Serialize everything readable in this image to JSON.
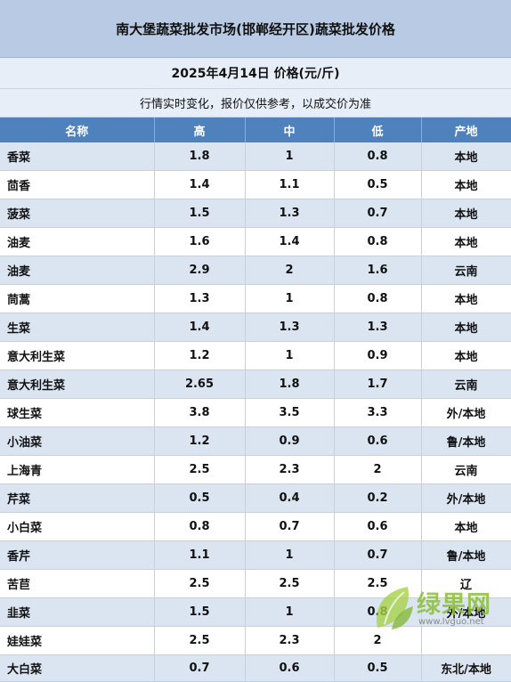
{
  "header": {
    "title": "南大堡蔬菜批发市场(邯郸经开区)蔬菜批发价格",
    "date_unit": "2025年4月14日  价格(元/斤)",
    "note": "行情实时变化，报价仅供参考，以成交价为准"
  },
  "table": {
    "columns": [
      "名称",
      "高",
      "中",
      "低",
      "产地"
    ],
    "rows": [
      {
        "name": "香菜",
        "high": "1.8",
        "mid": "1",
        "low": "0.8",
        "origin": "本地"
      },
      {
        "name": "茴香",
        "high": "1.4",
        "mid": "1.1",
        "low": "0.5",
        "origin": "本地"
      },
      {
        "name": "菠菜",
        "high": "1.5",
        "mid": "1.3",
        "low": "0.7",
        "origin": "本地"
      },
      {
        "name": "油麦",
        "high": "1.6",
        "mid": "1.4",
        "low": "0.8",
        "origin": "本地"
      },
      {
        "name": "油麦",
        "high": "2.9",
        "mid": "2",
        "low": "1.6",
        "origin": "云南"
      },
      {
        "name": "茼蒿",
        "high": "1.3",
        "mid": "1",
        "low": "0.8",
        "origin": "本地"
      },
      {
        "name": "生菜",
        "high": "1.4",
        "mid": "1.3",
        "low": "1.3",
        "origin": "本地"
      },
      {
        "name": "意大利生菜",
        "high": "1.2",
        "mid": "1",
        "low": "0.9",
        "origin": "本地"
      },
      {
        "name": "意大利生菜",
        "high": "2.65",
        "mid": "1.8",
        "low": "1.7",
        "origin": "云南"
      },
      {
        "name": "球生菜",
        "high": "3.8",
        "mid": "3.5",
        "low": "3.3",
        "origin": "外/本地"
      },
      {
        "name": "小油菜",
        "high": "1.2",
        "mid": "0.9",
        "low": "0.6",
        "origin": "鲁/本地"
      },
      {
        "name": "上海青",
        "high": "2.5",
        "mid": "2.3",
        "low": "2",
        "origin": "云南"
      },
      {
        "name": "芹菜",
        "high": "0.5",
        "mid": "0.4",
        "low": "0.2",
        "origin": "外/本地"
      },
      {
        "name": "小白菜",
        "high": "0.8",
        "mid": "0.7",
        "low": "0.6",
        "origin": "本地"
      },
      {
        "name": "香芹",
        "high": "1.1",
        "mid": "1",
        "low": "0.7",
        "origin": "鲁/本地"
      },
      {
        "name": "苦苣",
        "high": "2.5",
        "mid": "2.5",
        "low": "2.5",
        "origin": "辽"
      },
      {
        "name": "韭菜",
        "high": "1.5",
        "mid": "1",
        "low": "0.8",
        "origin": "外/本地"
      },
      {
        "name": "娃娃菜",
        "high": "2.5",
        "mid": "2.3",
        "low": "2",
        "origin": ""
      },
      {
        "name": "大白菜",
        "high": "0.7",
        "mid": "0.6",
        "low": "0.5",
        "origin": "东北/本地"
      }
    ]
  },
  "watermark": {
    "brand": "绿果网",
    "url": "www.lvguo.net",
    "icon": "green-leaf-icon",
    "color": "#8cbf3a"
  },
  "colors": {
    "title_bg": "#b9cbe4",
    "header_bg": "#4f81bd",
    "stripe": "#dbe5f1"
  }
}
